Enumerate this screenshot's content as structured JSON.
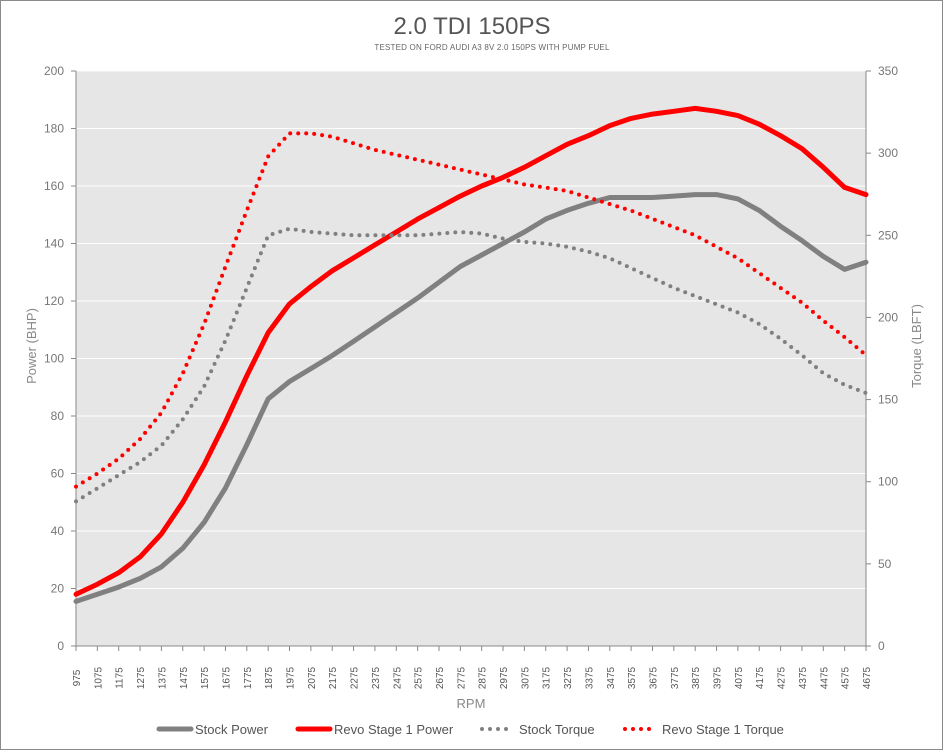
{
  "chart_data": {
    "type": "line",
    "title": "2.0 TDI 150PS",
    "subtitle": "TESTED ON FORD AUDI A3 8V 2.0 150PS WITH PUMP FUEL",
    "xlabel": "RPM",
    "ylabel": "Power (BHP)",
    "y2label": "Torque (LBFT)",
    "ylim": [
      0,
      200
    ],
    "y2lim": [
      0,
      350
    ],
    "yticks": [
      0,
      20,
      40,
      60,
      80,
      100,
      120,
      140,
      160,
      180,
      200
    ],
    "y2ticks": [
      0,
      50,
      100,
      150,
      200,
      250,
      300,
      350
    ],
    "x": [
      975,
      1075,
      1175,
      1275,
      1375,
      1475,
      1575,
      1675,
      1775,
      1875,
      1975,
      2075,
      2175,
      2275,
      2375,
      2475,
      2575,
      2675,
      2775,
      2875,
      2975,
      3075,
      3175,
      3275,
      3375,
      3475,
      3575,
      3675,
      3775,
      3875,
      3975,
      4075,
      4175,
      4275,
      4375,
      4475,
      4575,
      4675
    ],
    "xticks": [
      "975",
      "1075",
      "1175",
      "1275",
      "1375",
      "1475",
      "1575",
      "1675",
      "1775",
      "1875",
      "1975",
      "2075",
      "2175",
      "2275",
      "2375",
      "2475",
      "2575",
      "2675",
      "2775",
      "2875",
      "2975",
      "3075",
      "3175",
      "3275",
      "3375",
      "3475",
      "3575",
      "3675",
      "3775",
      "3875",
      "3975",
      "4075",
      "4175",
      "4275",
      "4375",
      "4475",
      "4575",
      "4675"
    ],
    "grid": true,
    "legend_position": "bottom",
    "series": [
      {
        "name": "Stock Power",
        "axis": "left",
        "style": "solid",
        "color": "#808080",
        "values": [
          15.5,
          18,
          20.5,
          23.5,
          27.5,
          34,
          43,
          55,
          70,
          86,
          92,
          96.5,
          101,
          106,
          111,
          116,
          121,
          126.5,
          132,
          136,
          140,
          144,
          148.5,
          151.5,
          154,
          156,
          156,
          156,
          156.5,
          157,
          157,
          155.5,
          151.5,
          146,
          141,
          135.5,
          131,
          133.5
        ]
      },
      {
        "name": "Revo Stage 1 Power",
        "axis": "left",
        "style": "solid",
        "color": "#ff0000",
        "values": [
          18,
          21.5,
          25.5,
          31,
          39,
          50,
          63,
          78,
          94,
          109,
          119,
          125,
          130.5,
          135,
          139.5,
          144,
          148.5,
          152.5,
          156.5,
          160,
          163,
          166.5,
          170.5,
          174.5,
          177.5,
          181,
          183.5,
          185,
          186,
          187,
          186,
          184.5,
          181.5,
          177.5,
          173,
          166.5,
          159.5,
          157
        ]
      },
      {
        "name": "Stock Torque",
        "axis": "right",
        "style": "dotted",
        "color": "#808080",
        "values": [
          88,
          96,
          104,
          112,
          122,
          138,
          158,
          186,
          218,
          250,
          254,
          252,
          251,
          250,
          250,
          250,
          250,
          251,
          252,
          251,
          248,
          246,
          245,
          243,
          240,
          236,
          230,
          224,
          218,
          213,
          208,
          203,
          196,
          187,
          177,
          166,
          159,
          154
        ]
      },
      {
        "name": "Revo Stage 1 Torque",
        "axis": "right",
        "style": "dotted",
        "color": "#ff0000",
        "values": [
          97,
          105,
          114,
          126,
          142,
          166,
          196,
          231,
          265,
          298,
          312,
          312,
          310,
          306,
          302,
          299,
          296,
          293,
          290,
          287,
          284,
          281,
          279,
          277,
          273,
          269,
          265,
          260,
          255,
          250,
          243,
          236,
          227,
          218,
          209,
          198,
          188,
          177
        ]
      }
    ]
  }
}
